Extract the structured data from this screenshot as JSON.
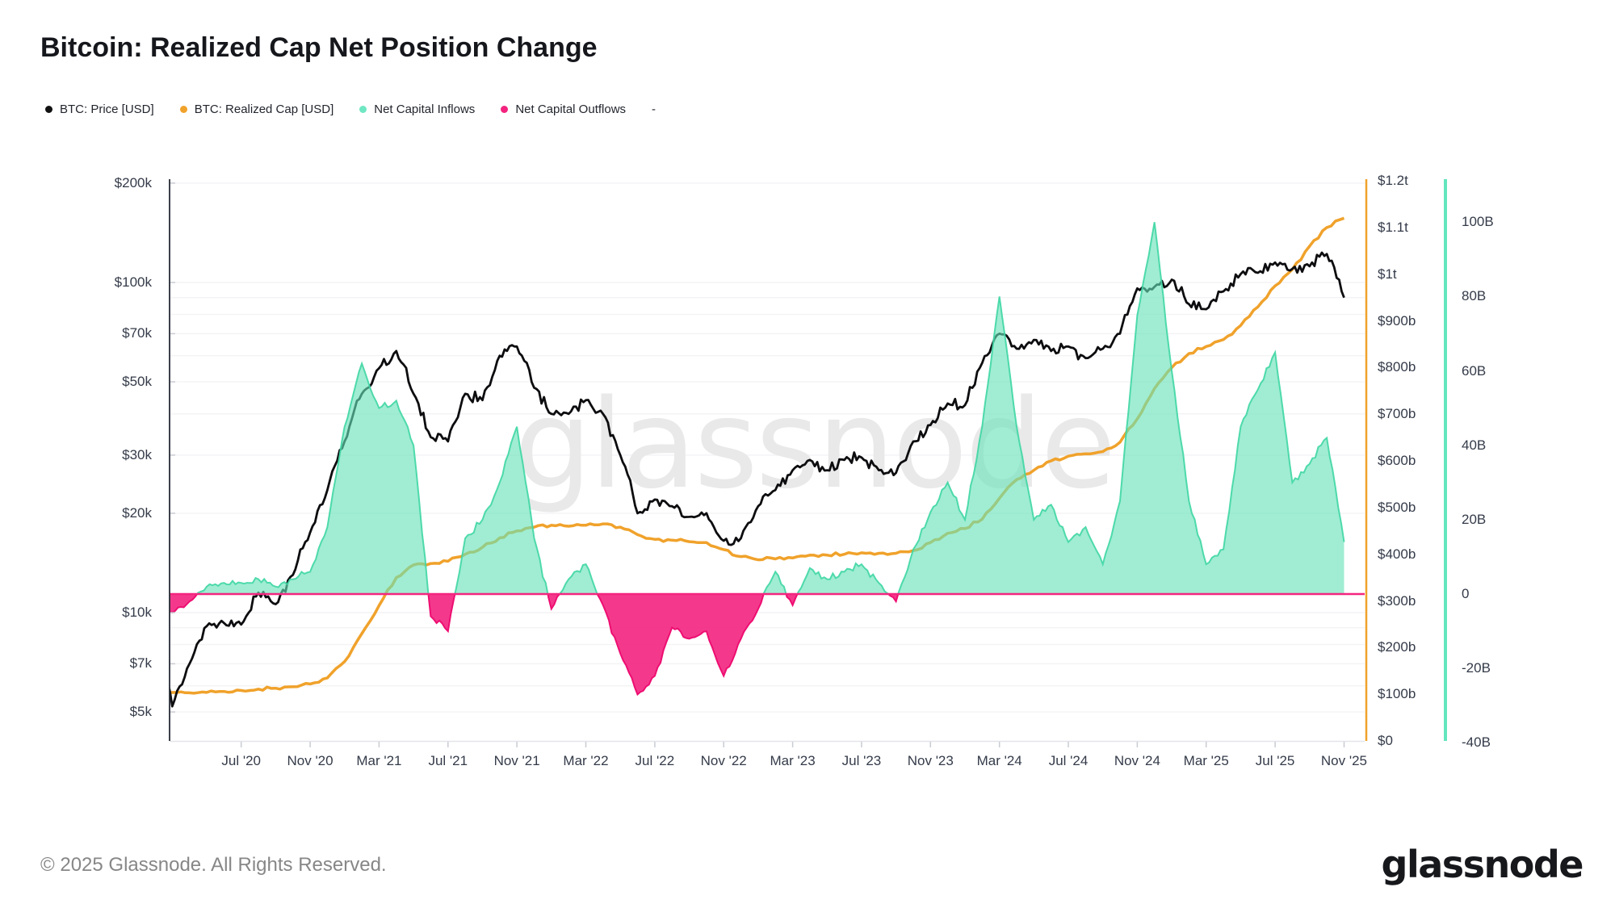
{
  "title": "Bitcoin: Realized Cap Net Position Change",
  "watermark": "glassnode",
  "footer": {
    "copyright": "© 2025 Glassnode. All Rights Reserved.",
    "logo_text": "glassnode"
  },
  "legend": {
    "items": [
      {
        "label": "BTC: Price [USD]",
        "color": "#111111"
      },
      {
        "label": "BTC: Realized Cap [USD]",
        "color": "#f0a22b"
      },
      {
        "label": "Net Capital Inflows",
        "color": "#6fe7c2"
      },
      {
        "label": "Net Capital Outflows",
        "color": "#f3237f"
      },
      {
        "label": "-",
        "color": null
      }
    ]
  },
  "colors": {
    "price": "#0d0d10",
    "realized_cap": "#f0a22b",
    "inflow_fill": "#65e2b8",
    "inflow_stroke": "#3fd6a4",
    "outflow_fill": "#f3237f",
    "outflow_stroke": "#ee0e72",
    "zero_line": "#f3267f",
    "grid": "#f3f3f5",
    "left_axis_line": "#262b35",
    "bottom_axis_line": "#e3e5e9",
    "tick": "#c9ccd3",
    "orange_axis_line": "#f0a22b",
    "teal_axis_line": "#63e6bd",
    "watermark": "#e9e9e9"
  },
  "chart_data": {
    "type": "area",
    "title": "Bitcoin: Realized Cap Net Position Change",
    "x_tick_labels": [
      "Jul '20",
      "Nov '20",
      "Mar '21",
      "Jul '21",
      "Nov '21",
      "Mar '22",
      "Jul '22",
      "Nov '22",
      "Mar '23",
      "Jul '23",
      "Nov '23",
      "Mar '24",
      "Jul '24",
      "Nov '24",
      "Mar '25",
      "Jul '25",
      "Nov '25"
    ],
    "x_tick_indices": [
      5,
      9,
      13,
      17,
      21,
      25,
      29,
      33,
      37,
      41,
      45,
      49,
      53,
      57,
      61,
      65,
      69
    ],
    "price_axis": {
      "scale": "log",
      "labels": [
        "$200k",
        "$100k",
        "$70k",
        "$50k",
        "$30k",
        "$20k",
        "$10k",
        "$7k",
        "$5k"
      ],
      "values_k": [
        200,
        100,
        70,
        50,
        30,
        20,
        10,
        7,
        5
      ],
      "grid_values_k": [
        5,
        6,
        7,
        8,
        9,
        10,
        20,
        30,
        40,
        50,
        60,
        70,
        80,
        90,
        100,
        200
      ]
    },
    "realized_cap_axis": {
      "scale": "linear",
      "labels": [
        "$1.2t",
        "$1.1t",
        "$1t",
        "$900b",
        "$800b",
        "$700b",
        "$600b",
        "$500b",
        "$400b",
        "$300b",
        "$200b",
        "$100b",
        "$0"
      ],
      "values_b": [
        1200,
        1100,
        1000,
        900,
        800,
        700,
        600,
        500,
        400,
        300,
        200,
        100,
        0
      ]
    },
    "flow_axis": {
      "scale": "linear",
      "labels": [
        "100B",
        "80B",
        "60B",
        "40B",
        "20B",
        "0",
        "-20B",
        "-40B"
      ],
      "values_b": [
        100,
        80,
        60,
        40,
        20,
        0,
        -20,
        -40
      ]
    },
    "months": [
      "2020-02",
      "2020-03",
      "2020-04",
      "2020-05",
      "2020-06",
      "2020-07",
      "2020-08",
      "2020-09",
      "2020-10",
      "2020-11",
      "2020-12",
      "2021-01",
      "2021-02",
      "2021-03",
      "2021-04",
      "2021-05",
      "2021-06",
      "2021-07",
      "2021-08",
      "2021-09",
      "2021-10",
      "2021-11",
      "2021-12",
      "2022-01",
      "2022-02",
      "2022-03",
      "2022-04",
      "2022-05",
      "2022-06",
      "2022-07",
      "2022-08",
      "2022-09",
      "2022-10",
      "2022-11",
      "2022-12",
      "2023-01",
      "2023-02",
      "2023-03",
      "2023-04",
      "2023-05",
      "2023-06",
      "2023-07",
      "2023-08",
      "2023-09",
      "2023-10",
      "2023-11",
      "2023-12",
      "2024-01",
      "2024-02",
      "2024-03",
      "2024-04",
      "2024-05",
      "2024-06",
      "2024-07",
      "2024-08",
      "2024-09",
      "2024-10",
      "2024-11",
      "2024-12",
      "2025-01",
      "2025-02",
      "2025-03",
      "2025-04",
      "2025-05",
      "2025-06",
      "2025-07",
      "2025-08",
      "2025-09",
      "2025-10",
      "2025-11"
    ],
    "series": [
      {
        "name": "BTC: Price [USD]",
        "unit": "USD thousands",
        "values": [
          9.6,
          5.2,
          7.0,
          9.1,
          9.3,
          9.2,
          11.5,
          10.6,
          13.0,
          17.5,
          23.5,
          33,
          46,
          55,
          62,
          46,
          34,
          33,
          46,
          44,
          60,
          64,
          48,
          40,
          40,
          44,
          40,
          30,
          20,
          22,
          21,
          19.5,
          20,
          16.5,
          16.8,
          21,
          23.5,
          27,
          29,
          27,
          29,
          29.5,
          27,
          26.5,
          33,
          37,
          43,
          42.5,
          57,
          70,
          63,
          67,
          62,
          64,
          59,
          63,
          70,
          96,
          97,
          102,
          86,
          83,
          94,
          106,
          107,
          115,
          110,
          112,
          122,
          90
        ]
      },
      {
        "name": "BTC: Realized Cap [USD]",
        "unit": "USD billions",
        "values": [
          106,
          104,
          103,
          104,
          106,
          108,
          111,
          113,
          116,
          122,
          135,
          170,
          230,
          290,
          350,
          377,
          380,
          385,
          400,
          415,
          435,
          450,
          458,
          462,
          460,
          462,
          465,
          458,
          442,
          432,
          430,
          427,
          425,
          410,
          395,
          388,
          390,
          392,
          398,
          398,
          400,
          403,
          402,
          402,
          408,
          425,
          445,
          455,
          475,
          520,
          560,
          580,
          600,
          610,
          615,
          620,
          640,
          690,
          755,
          800,
          830,
          845,
          860,
          890,
          930,
          975,
          1010,
          1060,
          1100,
          1120
        ]
      },
      {
        "name": "Net Capital Flows",
        "unit": "USD billions",
        "values": [
          0,
          -5,
          -2,
          2,
          3,
          3,
          4,
          2,
          4,
          6,
          18,
          45,
          62,
          50,
          52,
          40,
          -6,
          -10,
          15,
          20,
          30,
          45,
          15,
          -4,
          4,
          8,
          -3,
          -16,
          -27,
          -22,
          -9,
          -12,
          -10,
          -22,
          -12,
          -4,
          6,
          -3,
          7,
          4,
          6,
          8,
          3,
          -2,
          12,
          22,
          30,
          20,
          45,
          80,
          45,
          20,
          24,
          14,
          18,
          8,
          25,
          75,
          100,
          60,
          25,
          8,
          12,
          45,
          55,
          65,
          30,
          35,
          42,
          14
        ]
      }
    ]
  }
}
